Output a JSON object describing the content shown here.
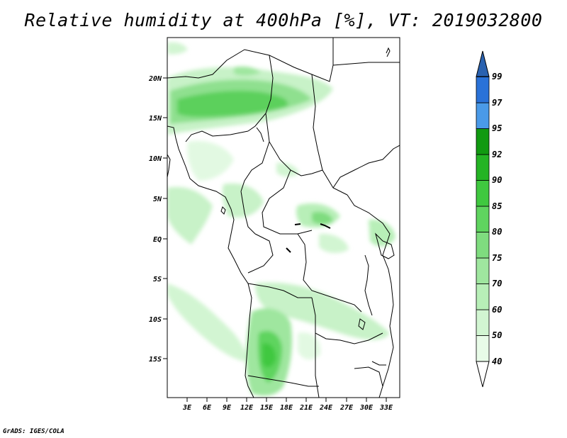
{
  "title": "Relative humidity at 400hPa [%], VT: 2019032800",
  "credit": "GrADS: IGES/COLA",
  "map": {
    "lat_labels": [
      "20N",
      "15N",
      "10N",
      "5N",
      "EQ",
      "5S",
      "10S",
      "15S"
    ],
    "lon_labels": [
      "3E",
      "6E",
      "9E",
      "12E",
      "15E",
      "18E",
      "21E",
      "24E",
      "27E",
      "30E",
      "33E"
    ],
    "lat_range": [
      -20,
      25
    ],
    "lon_range": [
      0,
      35
    ]
  },
  "colorbar": {
    "levels": [
      "40",
      "50",
      "60",
      "70",
      "75",
      "80",
      "85",
      "90",
      "92",
      "95",
      "97",
      "99"
    ],
    "colors": [
      "#ffffff",
      "#e8fbe8",
      "#d2f5d2",
      "#b8efb8",
      "#9fe69f",
      "#7fdc7f",
      "#5fd45f",
      "#3fc83f",
      "#24b424",
      "#119a11",
      "#4a9ae8",
      "#2a72d8",
      "#2a62b0"
    ]
  }
}
